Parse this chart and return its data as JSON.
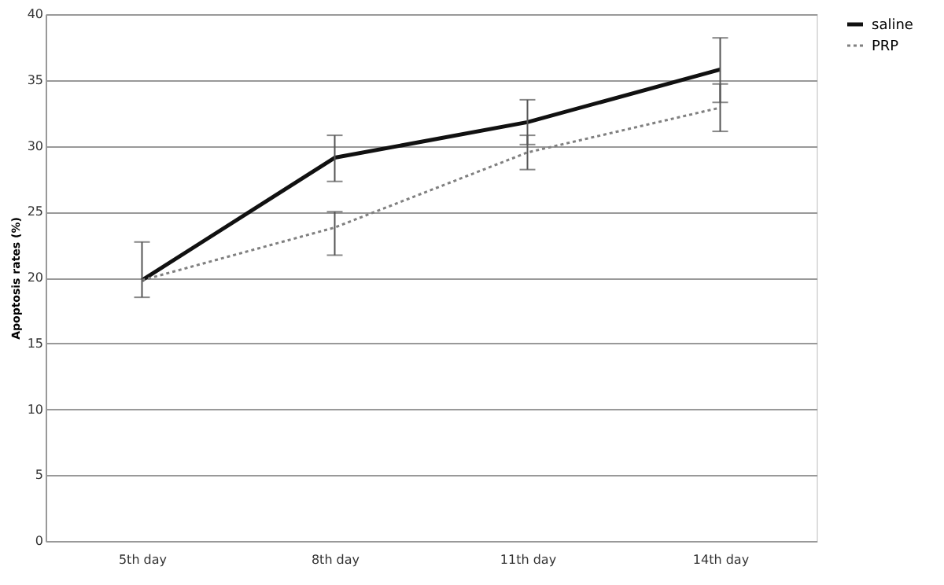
{
  "chart_data": {
    "type": "line",
    "ylabel": "Apoptosis rates (%)",
    "categories": [
      "5th day",
      "8th day",
      "11th day",
      "14th day"
    ],
    "series": [
      {
        "name": "saline",
        "color": "#111111",
        "line_style": "solid",
        "values": [
          19.8,
          29.1,
          31.8,
          35.8
        ],
        "errors": [
          [
            18.5,
            22.7
          ],
          [
            27.3,
            30.8
          ],
          [
            30.1,
            33.5
          ],
          [
            33.3,
            38.2
          ]
        ]
      },
      {
        "name": "PRP",
        "color": "#808080",
        "line_style": "dotted",
        "values": [
          19.8,
          23.8,
          29.5,
          32.9
        ],
        "errors": [
          null,
          [
            21.7,
            25.0
          ],
          [
            28.2,
            30.8
          ],
          [
            31.1,
            34.7
          ]
        ]
      }
    ],
    "ylim": [
      0,
      40
    ],
    "yticks": [
      0,
      5,
      10,
      15,
      20,
      25,
      30,
      35,
      40
    ],
    "grid": "y",
    "legend": "right",
    "marker": "none"
  }
}
